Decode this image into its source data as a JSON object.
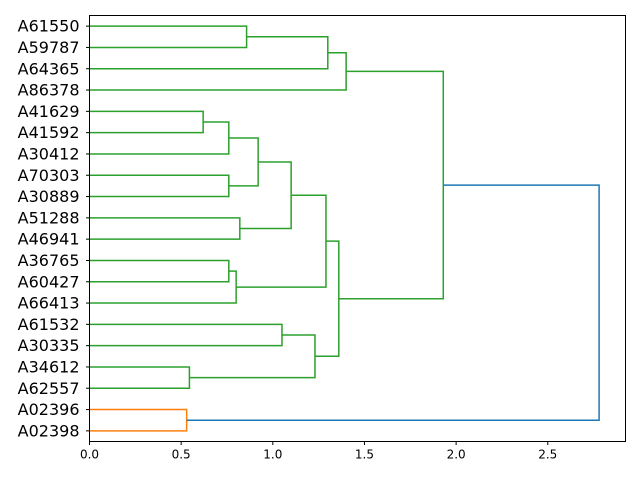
{
  "chart_data": {
    "type": "dendrogram",
    "title": "",
    "xlabel": "",
    "ylabel": "",
    "xlim": [
      0,
      2.924
    ],
    "xticks": [
      0.0,
      0.5,
      1.0,
      1.5,
      2.0,
      2.5
    ],
    "xtick_labels": [
      "0.0",
      "0.5",
      "1.0",
      "1.5",
      "2.0",
      "2.5"
    ],
    "leaves": [
      "A61550",
      "A59787",
      "A64365",
      "A86378",
      "A41629",
      "A41592",
      "A30412",
      "A70303",
      "A30889",
      "A51288",
      "A46941",
      "A36765",
      "A60427",
      "A66413",
      "A61532",
      "A30335",
      "A34612",
      "A62557",
      "A02396",
      "A02398"
    ],
    "colors": {
      "green": "#2ca02c",
      "orange": "#ff7f0e",
      "blue": "#1f77b4"
    },
    "merges": [
      {
        "left": 0,
        "right": 1,
        "height": 0.857,
        "color": "green"
      },
      {
        "left": 20,
        "right": 2,
        "height": 1.3,
        "color": "green"
      },
      {
        "left": 21,
        "right": 3,
        "height": 1.4,
        "color": "green"
      },
      {
        "left": 4,
        "right": 5,
        "height": 0.62,
        "color": "green"
      },
      {
        "left": 23,
        "right": 6,
        "height": 0.76,
        "color": "green"
      },
      {
        "left": 7,
        "right": 8,
        "height": 0.76,
        "color": "green"
      },
      {
        "left": 24,
        "right": 25,
        "height": 0.92,
        "color": "green"
      },
      {
        "left": 9,
        "right": 10,
        "height": 0.82,
        "color": "green"
      },
      {
        "left": 26,
        "right": 27,
        "height": 1.1,
        "color": "green"
      },
      {
        "left": 11,
        "right": 12,
        "height": 0.76,
        "color": "green"
      },
      {
        "left": 29,
        "right": 13,
        "height": 0.8,
        "color": "green"
      },
      {
        "left": 28,
        "right": 30,
        "height": 1.29,
        "color": "green"
      },
      {
        "left": 14,
        "right": 15,
        "height": 1.05,
        "color": "green"
      },
      {
        "left": 16,
        "right": 17,
        "height": 0.545,
        "color": "green"
      },
      {
        "left": 32,
        "right": 33,
        "height": 1.23,
        "color": "green"
      },
      {
        "left": 31,
        "right": 34,
        "height": 1.36,
        "color": "green"
      },
      {
        "left": 22,
        "right": 35,
        "height": 1.93,
        "color": "green"
      },
      {
        "left": 18,
        "right": 19,
        "height": 0.53,
        "color": "orange"
      },
      {
        "left": 36,
        "right": 37,
        "height": 2.78,
        "color": "blue"
      }
    ]
  }
}
